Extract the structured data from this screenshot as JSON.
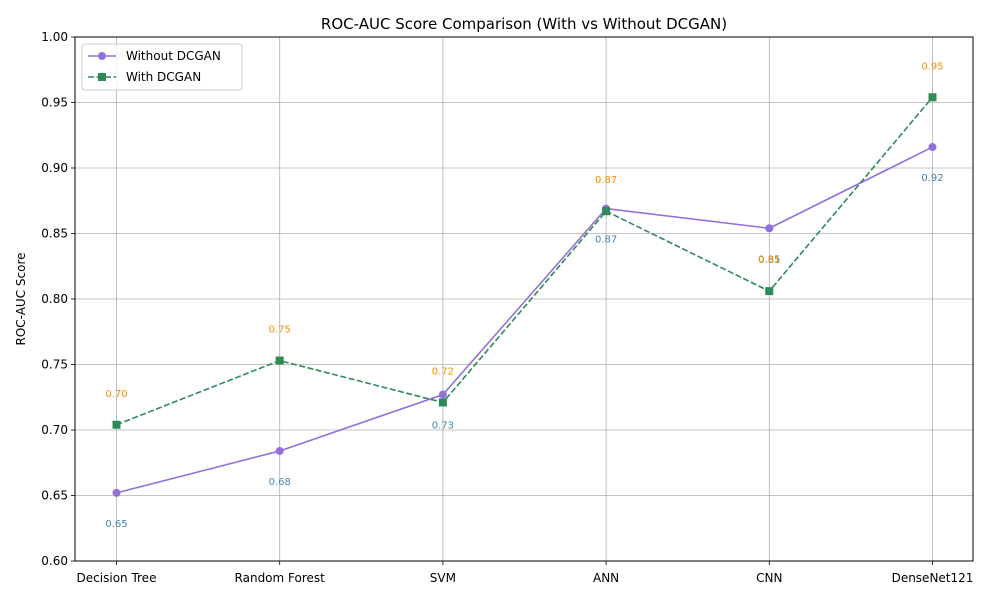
{
  "chart_data": {
    "type": "line",
    "title": "ROC-AUC Score Comparison (With vs Without DCGAN)",
    "xlabel": "",
    "ylabel": "ROC-AUC Score",
    "categories": [
      "Decision Tree",
      "Random Forest",
      "SVM",
      "ANN",
      "CNN",
      "DenseNet121"
    ],
    "ylim": [
      0.6,
      1.0
    ],
    "yticks": [
      "0.60",
      "0.65",
      "0.70",
      "0.75",
      "0.80",
      "0.85",
      "0.90",
      "0.95",
      "1.00"
    ],
    "grid": true,
    "legend_position": "top-left",
    "series": [
      {
        "name": "Without DCGAN",
        "values": [
          0.652,
          0.684,
          0.727,
          0.869,
          0.854,
          0.916
        ],
        "labels": [
          "0.65",
          "0.68",
          "0.73",
          "0.87",
          "0.85",
          "0.92"
        ],
        "color": "#9370db",
        "label_color": "#4682b4",
        "line_style": "solid",
        "marker": "circle"
      },
      {
        "name": "With DCGAN",
        "values": [
          0.704,
          0.753,
          0.721,
          0.867,
          0.806,
          0.954
        ],
        "labels": [
          "0.70",
          "0.75",
          "0.72",
          "0.87",
          "0.81",
          "0.95"
        ],
        "color": "#2e8b57",
        "label_color": "#ff8c00",
        "line_style": "dashed",
        "marker": "square"
      }
    ]
  }
}
